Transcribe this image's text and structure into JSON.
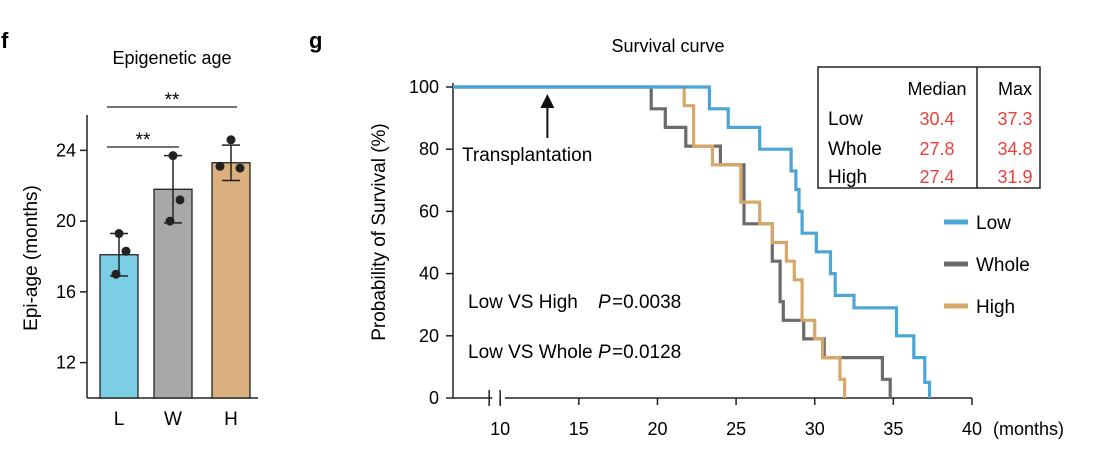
{
  "chart_data": [
    {
      "panel": "f",
      "type": "bar",
      "title": "Epigenetic age",
      "ylabel": "Epi-age (months)",
      "xlabel": "",
      "ylim": [
        10,
        26
      ],
      "yticks": [
        12,
        16,
        20,
        24
      ],
      "categories": [
        "L",
        "W",
        "H"
      ],
      "values": [
        18.1,
        21.8,
        23.3
      ],
      "errors": [
        1.2,
        1.9,
        1.0
      ],
      "colors": [
        "#7ccde6",
        "#a9a9ab",
        "#d9b07e"
      ],
      "points": [
        [
          19.3,
          18.3,
          17.0
        ],
        [
          23.7,
          21.2,
          20.0
        ],
        [
          24.6,
          23.1,
          23.0
        ]
      ],
      "significance": [
        {
          "from": "L",
          "to": "H",
          "label": "**"
        },
        {
          "from": "L",
          "to": "W",
          "label": "**"
        }
      ]
    },
    {
      "panel": "g",
      "type": "line",
      "title": "Survival curve",
      "ylabel": "Probability of Survival (%)",
      "xlabel": "(months)",
      "xlim": [
        7,
        40
      ],
      "ylim": [
        0,
        100
      ],
      "xticks": [
        10,
        15,
        20,
        25,
        30,
        35,
        40
      ],
      "yticks": [
        0,
        20,
        40,
        60,
        80,
        100
      ],
      "annotation": "Transplantation",
      "annotation_x": 13,
      "stats": [
        {
          "label": "Low VS High",
          "p_label": "P",
          "p_value": "=0.0038"
        },
        {
          "label": "Low VS Whole",
          "p_label": "P",
          "p_value": "=0.0128"
        }
      ],
      "series": [
        {
          "name": "Low",
          "color": "#4ba6d6",
          "steps": [
            [
              7,
              100
            ],
            [
              23.3,
              100
            ],
            [
              23.3,
              93
            ],
            [
              24.5,
              93
            ],
            [
              24.5,
              87
            ],
            [
              26.5,
              87
            ],
            [
              26.5,
              80
            ],
            [
              28.5,
              80
            ],
            [
              28.5,
              73
            ],
            [
              28.8,
              73
            ],
            [
              28.8,
              67
            ],
            [
              29,
              67
            ],
            [
              29,
              60
            ],
            [
              29.2,
              60
            ],
            [
              29.2,
              53
            ],
            [
              30.1,
              53
            ],
            [
              30.1,
              47
            ],
            [
              31,
              47
            ],
            [
              31,
              40
            ],
            [
              31.3,
              40
            ],
            [
              31.3,
              33
            ],
            [
              32.5,
              33
            ],
            [
              32.5,
              29
            ],
            [
              35.2,
              29
            ],
            [
              35.2,
              20
            ],
            [
              36.3,
              20
            ],
            [
              36.3,
              13
            ],
            [
              37,
              13
            ],
            [
              37,
              5
            ],
            [
              37.3,
              5
            ],
            [
              37.3,
              0
            ]
          ]
        },
        {
          "name": "Whole",
          "color": "#6b6b6b",
          "steps": [
            [
              7,
              100
            ],
            [
              19.6,
              100
            ],
            [
              19.6,
              93
            ],
            [
              20.5,
              93
            ],
            [
              20.5,
              87
            ],
            [
              21.8,
              87
            ],
            [
              21.8,
              81
            ],
            [
              24,
              81
            ],
            [
              24,
              75
            ],
            [
              25.5,
              75
            ],
            [
              25.5,
              56
            ],
            [
              27.3,
              56
            ],
            [
              27.3,
              44
            ],
            [
              27.8,
              44
            ],
            [
              27.8,
              31
            ],
            [
              28,
              31
            ],
            [
              28,
              25
            ],
            [
              29.3,
              25
            ],
            [
              29.3,
              19
            ],
            [
              30.6,
              19
            ],
            [
              30.6,
              13
            ],
            [
              34.3,
              13
            ],
            [
              34.3,
              6
            ],
            [
              34.8,
              6
            ],
            [
              34.8,
              0
            ]
          ]
        },
        {
          "name": "High",
          "color": "#d7a76a",
          "steps": [
            [
              7,
              100
            ],
            [
              21.7,
              100
            ],
            [
              21.7,
              94
            ],
            [
              22.3,
              94
            ],
            [
              22.3,
              81
            ],
            [
              23.5,
              81
            ],
            [
              23.5,
              75
            ],
            [
              25.3,
              75
            ],
            [
              25.3,
              63
            ],
            [
              26.5,
              63
            ],
            [
              26.5,
              56
            ],
            [
              27.3,
              56
            ],
            [
              27.3,
              50
            ],
            [
              28.2,
              50
            ],
            [
              28.2,
              44
            ],
            [
              28.7,
              44
            ],
            [
              28.7,
              38
            ],
            [
              29.2,
              38
            ],
            [
              29.2,
              25
            ],
            [
              30,
              25
            ],
            [
              30,
              19
            ],
            [
              30.5,
              19
            ],
            [
              30.5,
              13
            ],
            [
              31.6,
              13
            ],
            [
              31.6,
              6
            ],
            [
              31.9,
              6
            ],
            [
              31.9,
              0
            ]
          ]
        }
      ],
      "table": {
        "headers": [
          "",
          "Median",
          "Max"
        ],
        "rows": [
          [
            "Low",
            "30.4",
            "37.3"
          ],
          [
            "Whole",
            "27.8",
            "34.8"
          ],
          [
            "High",
            "27.4",
            "31.9"
          ]
        ],
        "value_color": "#e8413b"
      }
    }
  ]
}
